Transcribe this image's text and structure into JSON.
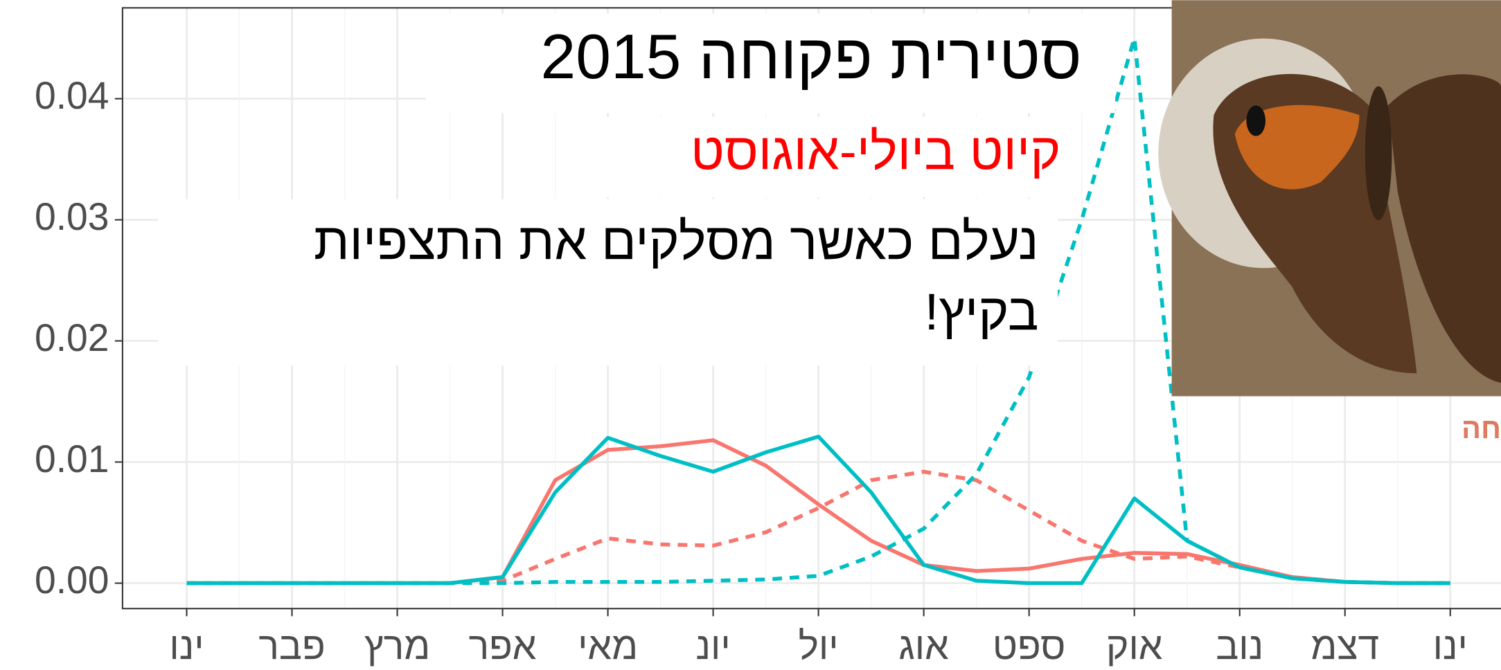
{
  "chart_data": {
    "type": "line",
    "title": "סטירית פקוחה 2015",
    "annotations": [
      "קיוט ביולי-אוגוסט",
      "נעלם כאשר מסלקים את התצפיות",
      "בקיץ!",
      "חה"
    ],
    "categories": [
      "ינו",
      null,
      "פבר",
      null,
      "מרץ",
      null,
      "אפר",
      null,
      "מאי",
      null,
      "יונ",
      null,
      "יול",
      null,
      "אוג",
      null,
      "ספט",
      null,
      "אוק",
      null,
      "נוב",
      null,
      "דצמ",
      null,
      "ינו"
    ],
    "series": [
      {
        "color": "#f8766d",
        "dash": false,
        "values": [
          0,
          0,
          0,
          0,
          0,
          0,
          0.0005,
          0.0085,
          0.011,
          0.0113,
          0.0118,
          0.0097,
          0.0065,
          0.0035,
          0.0015,
          0.001,
          0.0012,
          0.002,
          0.0025,
          0.0024,
          0.0015,
          0.0005,
          0.0001,
          0,
          0
        ]
      },
      {
        "color": "#f8766d",
        "dash": true,
        "values": [
          0,
          0,
          0,
          0,
          0,
          0,
          0.0002,
          0.002,
          0.0037,
          0.0032,
          0.0031,
          0.0042,
          0.0062,
          0.0085,
          0.0092,
          0.0085,
          0.006,
          0.0035,
          0.002,
          0.0022,
          0.0013,
          0.0005,
          0.0001,
          0,
          0
        ]
      },
      {
        "color": "#00bfc4",
        "dash": false,
        "values": [
          0,
          0,
          0,
          0,
          0,
          0,
          0.0005,
          0.0075,
          0.012,
          0.0105,
          0.0092,
          0.0108,
          0.0121,
          0.0075,
          0.0015,
          0.0002,
          0,
          0,
          0.007,
          0.0035,
          0.0013,
          0.0004,
          0.0001,
          0,
          0
        ]
      },
      {
        "color": "#00bfc4",
        "dash": true,
        "values": [
          0,
          0,
          0,
          0,
          0,
          0,
          0,
          0.0001,
          0.0001,
          0.0001,
          0.0002,
          0.0003,
          0.0006,
          0.0022,
          0.0045,
          0.009,
          0.017,
          0.03,
          0.045,
          0.0035,
          0.0013,
          0.0004,
          0.0001,
          0,
          0
        ]
      }
    ],
    "ylim": [
      -0.0021,
      0.0475
    ],
    "yticks": [
      {
        "value": 0,
        "label": "0.00"
      },
      {
        "value": 0.01,
        "label": "0.01"
      },
      {
        "value": 0.02,
        "label": "0.02"
      },
      {
        "value": 0.03,
        "label": "0.03"
      },
      {
        "value": 0.04,
        "label": "0.04"
      }
    ],
    "grid": true
  }
}
